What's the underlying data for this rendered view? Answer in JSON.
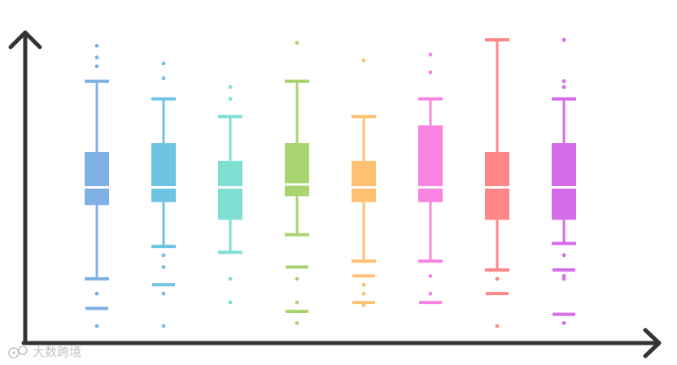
{
  "chart_data": {
    "type": "box",
    "title": "",
    "xlabel": "",
    "ylabel": "",
    "ylim": [
      0,
      100
    ],
    "grid": false,
    "legend": "none",
    "series": [
      {
        "color": "#7fb0e6",
        "whisker_low": 19,
        "q1": 44,
        "median": 50,
        "q3": 62,
        "whisker_high": 86,
        "outliers": [
          91,
          94,
          98,
          14,
          9,
          3
        ]
      },
      {
        "color": "#6fc3e3",
        "whisker_low": 30,
        "q1": 45,
        "median": 50,
        "q3": 65,
        "whisker_high": 80,
        "outliers": [
          87,
          92,
          27,
          23,
          17,
          14,
          3
        ]
      },
      {
        "color": "#80dfd3",
        "whisker_low": 28,
        "q1": 39,
        "median": 50,
        "q3": 59,
        "whisker_high": 74,
        "outliers": [
          80,
          84,
          19,
          11
        ]
      },
      {
        "color": "#a9d46f",
        "whisker_low": 34,
        "q1": 47,
        "median": 51,
        "q3": 65,
        "whisker_high": 86,
        "outliers": [
          99,
          23,
          19,
          11,
          8,
          4
        ]
      },
      {
        "color": "#ffc171",
        "whisker_low": 25,
        "q1": 45,
        "median": 50,
        "q3": 59,
        "whisker_high": 74,
        "outliers": [
          93,
          20,
          17,
          14,
          11,
          10
        ]
      },
      {
        "color": "#f983e0",
        "whisker_low": 25,
        "q1": 45,
        "median": 50,
        "q3": 71,
        "whisker_high": 80,
        "outliers": [
          95,
          89,
          20,
          14,
          11
        ]
      },
      {
        "color": "#ff8686",
        "whisker_low": 22,
        "q1": 39,
        "median": 50,
        "q3": 62,
        "whisker_high": 100,
        "outliers": [
          19,
          14,
          3
        ]
      },
      {
        "color": "#d56de8",
        "whisker_low": 31,
        "q1": 39,
        "median": 50,
        "q3": 65,
        "whisker_high": 80,
        "outliers": [
          100,
          86,
          84,
          27,
          22,
          20,
          19,
          7,
          4
        ]
      }
    ]
  },
  "colors": {
    "axis": "#333333",
    "median_line": "#ffffff",
    "watermark": "#c4c4c4"
  },
  "watermark": {
    "text": "大数跨境",
    "icon": "watermark-logo-icon"
  }
}
